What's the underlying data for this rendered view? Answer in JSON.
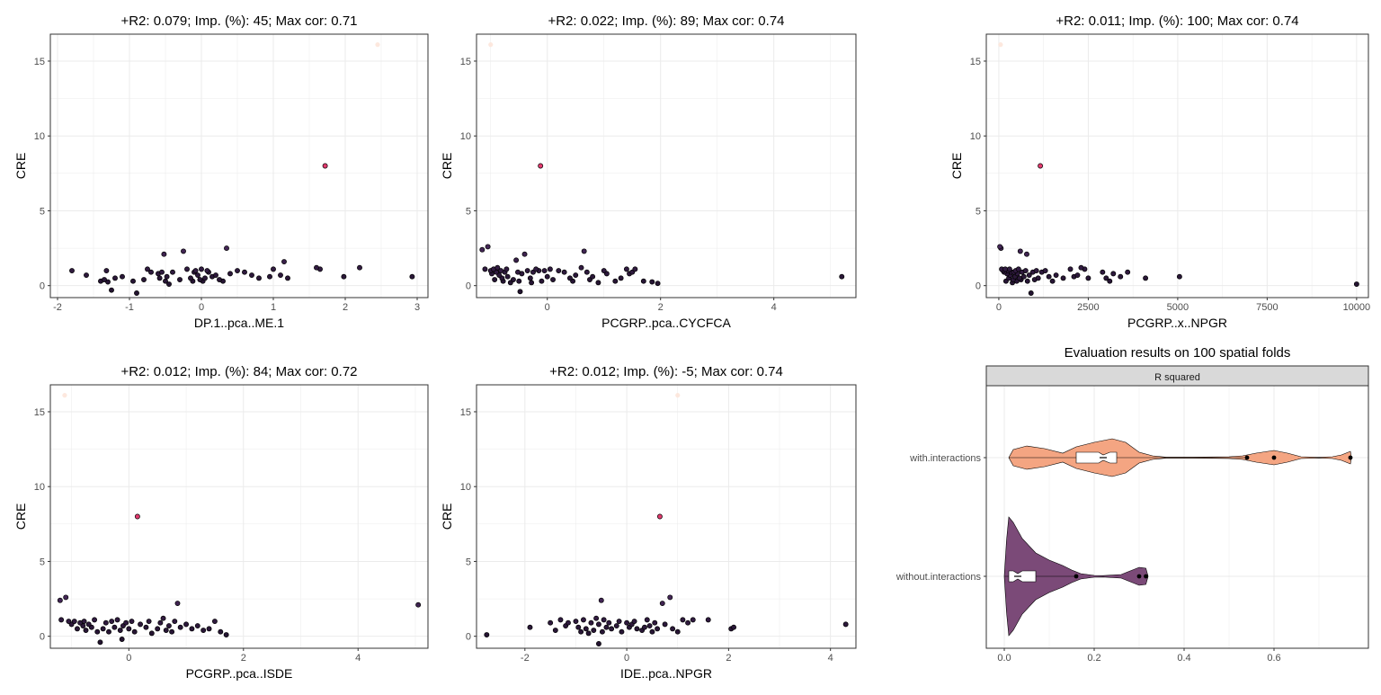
{
  "chart_data": [
    {
      "type": "scatter",
      "title": "+R2: 0.079; Imp. (%): 45; Max cor: 0.71",
      "xlabel": "DP.1..pca..ME.1",
      "ylabel": "CRE",
      "xlim": [
        -2.1,
        3.15
      ],
      "ylim": [
        -0.8,
        16.8
      ],
      "xticks": [
        -2,
        -1,
        0,
        1,
        2,
        3
      ],
      "yticks": [
        0,
        5,
        10,
        15
      ],
      "grid": true,
      "point_color_scale": "magma (dark purple = low CRE, pink = mid, pale peach = high)",
      "points": [
        [
          -1.8,
          1.0
        ],
        [
          -1.6,
          0.7
        ],
        [
          -1.4,
          0.3
        ],
        [
          -1.35,
          0.4
        ],
        [
          -1.32,
          1.0
        ],
        [
          -1.3,
          0.25
        ],
        [
          -1.25,
          -0.3
        ],
        [
          -1.2,
          0.5
        ],
        [
          -1.1,
          0.6
        ],
        [
          -0.95,
          0.3
        ],
        [
          -0.9,
          -0.5
        ],
        [
          -0.8,
          0.4
        ],
        [
          -0.75,
          1.1
        ],
        [
          -0.7,
          0.9
        ],
        [
          -0.6,
          0.8
        ],
        [
          -0.58,
          0.5
        ],
        [
          -0.55,
          0.9
        ],
        [
          -0.52,
          2.1
        ],
        [
          -0.5,
          0.3
        ],
        [
          -0.48,
          0.6
        ],
        [
          -0.45,
          0.1
        ],
        [
          -0.4,
          0.9
        ],
        [
          -0.3,
          0.4
        ],
        [
          -0.25,
          2.3
        ],
        [
          -0.2,
          1.1
        ],
        [
          -0.15,
          0.5
        ],
        [
          -0.12,
          0.3
        ],
        [
          -0.1,
          0.9
        ],
        [
          -0.08,
          1.0
        ],
        [
          -0.05,
          0.7
        ],
        [
          -0.02,
          0.4
        ],
        [
          0.0,
          1.1
        ],
        [
          0.02,
          0.3
        ],
        [
          0.05,
          0.5
        ],
        [
          0.08,
          1.0
        ],
        [
          0.1,
          0.9
        ],
        [
          0.15,
          0.6
        ],
        [
          0.2,
          0.7
        ],
        [
          0.25,
          0.4
        ],
        [
          0.3,
          0.3
        ],
        [
          0.35,
          2.5
        ],
        [
          0.4,
          0.8
        ],
        [
          0.5,
          1.0
        ],
        [
          0.6,
          0.9
        ],
        [
          0.7,
          0.7
        ],
        [
          0.8,
          0.5
        ],
        [
          0.95,
          0.6
        ],
        [
          1.0,
          1.1
        ],
        [
          1.1,
          0.7
        ],
        [
          1.15,
          1.6
        ],
        [
          1.2,
          0.5
        ],
        [
          1.6,
          1.2
        ],
        [
          1.65,
          1.1
        ],
        [
          1.72,
          8.0
        ],
        [
          1.98,
          0.6
        ],
        [
          2.2,
          1.2
        ],
        [
          2.45,
          16.1
        ],
        [
          2.93,
          0.6
        ]
      ]
    },
    {
      "type": "scatter",
      "title": "+R2: 0.022; Imp. (%): 89; Max cor: 0.74",
      "xlabel": "PCGRP..pca..CYCFCA",
      "ylabel": "CRE",
      "xlim": [
        -1.25,
        5.45
      ],
      "ylim": [
        -0.8,
        16.8
      ],
      "xticks": [
        0,
        2,
        4
      ],
      "yticks": [
        0,
        5,
        10,
        15
      ],
      "grid": true,
      "points": [
        [
          -1.15,
          2.4
        ],
        [
          -1.1,
          1.1
        ],
        [
          -1.05,
          2.6
        ],
        [
          -1.0,
          1.0
        ],
        [
          -0.98,
          0.8
        ],
        [
          -0.95,
          1.1
        ],
        [
          -0.93,
          0.4
        ],
        [
          -0.9,
          0.9
        ],
        [
          -0.88,
          1.2
        ],
        [
          -0.85,
          0.7
        ],
        [
          -0.82,
          1.0
        ],
        [
          -0.8,
          0.5
        ],
        [
          -0.78,
          0.3
        ],
        [
          -0.75,
          0.9
        ],
        [
          -0.72,
          1.1
        ],
        [
          -0.7,
          0.6
        ],
        [
          -0.65,
          0.2
        ],
        [
          -0.6,
          0.4
        ],
        [
          -0.55,
          1.7
        ],
        [
          -0.52,
          0.9
        ],
        [
          -0.5,
          0.3
        ],
        [
          -0.48,
          -0.4
        ],
        [
          -0.45,
          0.8
        ],
        [
          -0.4,
          2.1
        ],
        [
          -0.35,
          1.0
        ],
        [
          -0.3,
          0.5
        ],
        [
          -0.28,
          0.2
        ],
        [
          -0.25,
          0.9
        ],
        [
          -0.2,
          1.1
        ],
        [
          -0.15,
          1.0
        ],
        [
          -0.12,
          8.0
        ],
        [
          -0.1,
          0.3
        ],
        [
          -0.05,
          1.0
        ],
        [
          0.0,
          0.6
        ],
        [
          0.05,
          1.1
        ],
        [
          0.1,
          0.4
        ],
        [
          0.2,
          1.0
        ],
        [
          0.3,
          0.9
        ],
        [
          0.4,
          0.5
        ],
        [
          0.45,
          0.3
        ],
        [
          0.5,
          0.7
        ],
        [
          0.6,
          1.2
        ],
        [
          0.65,
          2.3
        ],
        [
          0.7,
          0.9
        ],
        [
          0.75,
          0.4
        ],
        [
          0.8,
          0.6
        ],
        [
          0.9,
          0.2
        ],
        [
          1.0,
          1.0
        ],
        [
          1.05,
          0.8
        ],
        [
          1.2,
          0.3
        ],
        [
          1.3,
          0.5
        ],
        [
          1.4,
          1.1
        ],
        [
          1.45,
          0.8
        ],
        [
          1.5,
          0.9
        ],
        [
          1.55,
          1.1
        ],
        [
          1.7,
          0.3
        ],
        [
          1.85,
          0.25
        ],
        [
          1.95,
          0.15
        ],
        [
          5.2,
          0.6
        ],
        [
          -1.0,
          16.1
        ]
      ]
    },
    {
      "type": "scatter",
      "title": "+R2: 0.011; Imp. (%): 100; Max cor: 0.74",
      "xlabel": "PCGRP..x..NPGR",
      "ylabel": "CRE",
      "xlim": [
        -350,
        10330
      ],
      "ylim": [
        -0.8,
        16.8
      ],
      "xticks": [
        0,
        2500,
        5000,
        7500,
        10000
      ],
      "xticklabels": [
        "0",
        "2500",
        "5000",
        "7500",
        "10000"
      ],
      "yticks": [
        0,
        5,
        10,
        15
      ],
      "grid": true,
      "points": [
        [
          30,
          2.6
        ],
        [
          60,
          2.5
        ],
        [
          80,
          1.1
        ],
        [
          120,
          1.0
        ],
        [
          150,
          0.9
        ],
        [
          180,
          1.1
        ],
        [
          200,
          0.3
        ],
        [
          230,
          0.8
        ],
        [
          260,
          1.0
        ],
        [
          280,
          0.5
        ],
        [
          300,
          1.1
        ],
        [
          320,
          0.7
        ],
        [
          350,
          0.9
        ],
        [
          380,
          0.2
        ],
        [
          400,
          0.4
        ],
        [
          420,
          0.9
        ],
        [
          450,
          0.6
        ],
        [
          470,
          1.0
        ],
        [
          500,
          0.3
        ],
        [
          520,
          0.8
        ],
        [
          550,
          1.1
        ],
        [
          580,
          0.5
        ],
        [
          600,
          2.3
        ],
        [
          620,
          0.4
        ],
        [
          650,
          0.9
        ],
        [
          700,
          0.6
        ],
        [
          750,
          1.0
        ],
        [
          780,
          2.1
        ],
        [
          800,
          0.3
        ],
        [
          850,
          0.7
        ],
        [
          900,
          -0.5
        ],
        [
          950,
          0.9
        ],
        [
          1000,
          0.4
        ],
        [
          1050,
          1.0
        ],
        [
          1100,
          0.5
        ],
        [
          1160,
          8.0
        ],
        [
          1200,
          0.9
        ],
        [
          1300,
          1.0
        ],
        [
          1400,
          0.6
        ],
        [
          1500,
          0.3
        ],
        [
          1600,
          0.7
        ],
        [
          1800,
          0.5
        ],
        [
          2000,
          1.1
        ],
        [
          2100,
          0.6
        ],
        [
          2200,
          0.7
        ],
        [
          2300,
          1.2
        ],
        [
          2400,
          1.1
        ],
        [
          2500,
          0.5
        ],
        [
          2900,
          0.9
        ],
        [
          3000,
          0.5
        ],
        [
          3100,
          0.3
        ],
        [
          3200,
          0.8
        ],
        [
          3400,
          0.6
        ],
        [
          3600,
          0.9
        ],
        [
          4100,
          0.5
        ],
        [
          5050,
          0.6
        ],
        [
          10000,
          0.1
        ],
        [
          50,
          16.1
        ]
      ]
    },
    {
      "type": "scatter",
      "title": "+R2: 0.012; Imp. (%): 84; Max cor: 0.72",
      "xlabel": "PCGRP..pca..ISDE",
      "ylabel": "CRE",
      "xlim": [
        -1.37,
        5.22
      ],
      "ylim": [
        -0.8,
        16.8
      ],
      "xticks": [
        0,
        2,
        4
      ],
      "yticks": [
        0,
        5,
        10,
        15
      ],
      "grid": true,
      "points": [
        [
          -1.2,
          2.4
        ],
        [
          -1.18,
          1.1
        ],
        [
          -1.1,
          2.6
        ],
        [
          -1.05,
          1.0
        ],
        [
          -1.0,
          0.8
        ],
        [
          -0.95,
          1.0
        ],
        [
          -0.9,
          0.5
        ],
        [
          -0.85,
          0.9
        ],
        [
          -0.8,
          0.7
        ],
        [
          -0.78,
          1.0
        ],
        [
          -0.75,
          0.4
        ],
        [
          -0.7,
          0.8
        ],
        [
          -0.65,
          0.6
        ],
        [
          -0.6,
          1.1
        ],
        [
          -0.55,
          0.3
        ],
        [
          -0.5,
          -0.4
        ],
        [
          -0.45,
          0.5
        ],
        [
          -0.4,
          0.9
        ],
        [
          -0.35,
          0.3
        ],
        [
          -0.3,
          1.0
        ],
        [
          -0.25,
          0.6
        ],
        [
          -0.2,
          1.1
        ],
        [
          -0.15,
          0.4
        ],
        [
          -0.12,
          -0.2
        ],
        [
          -0.1,
          0.7
        ],
        [
          -0.05,
          0.9
        ],
        [
          0.0,
          0.5
        ],
        [
          0.05,
          1.0
        ],
        [
          0.1,
          0.3
        ],
        [
          0.15,
          8.0
        ],
        [
          0.2,
          0.8
        ],
        [
          0.3,
          0.6
        ],
        [
          0.35,
          1.0
        ],
        [
          0.4,
          0.2
        ],
        [
          0.5,
          0.5
        ],
        [
          0.55,
          0.9
        ],
        [
          0.6,
          1.2
        ],
        [
          0.65,
          0.4
        ],
        [
          0.7,
          0.7
        ],
        [
          0.75,
          0.3
        ],
        [
          0.8,
          1.0
        ],
        [
          0.85,
          2.2
        ],
        [
          0.9,
          0.6
        ],
        [
          1.0,
          0.8
        ],
        [
          1.1,
          0.5
        ],
        [
          1.2,
          0.7
        ],
        [
          1.3,
          0.4
        ],
        [
          1.4,
          0.5
        ],
        [
          1.5,
          1.0
        ],
        [
          1.6,
          0.3
        ],
        [
          1.7,
          0.1
        ],
        [
          5.05,
          2.1
        ],
        [
          -1.12,
          16.1
        ]
      ]
    },
    {
      "type": "scatter",
      "title": "+R2: 0.012; Imp. (%): -5; Max cor: 0.74",
      "xlabel": "IDE..pca..NPGR",
      "ylabel": "CRE",
      "xlim": [
        -2.95,
        4.5
      ],
      "ylim": [
        -0.8,
        16.8
      ],
      "xticks": [
        -2,
        0,
        2,
        4
      ],
      "yticks": [
        0,
        5,
        10,
        15
      ],
      "grid": true,
      "points": [
        [
          -2.75,
          0.1
        ],
        [
          -1.9,
          0.6
        ],
        [
          -1.5,
          0.9
        ],
        [
          -1.4,
          0.4
        ],
        [
          -1.3,
          1.1
        ],
        [
          -1.2,
          0.7
        ],
        [
          -1.15,
          0.9
        ],
        [
          -1.0,
          1.0
        ],
        [
          -0.95,
          0.6
        ],
        [
          -0.9,
          0.3
        ],
        [
          -0.85,
          1.1
        ],
        [
          -0.8,
          0.5
        ],
        [
          -0.75,
          0.2
        ],
        [
          -0.7,
          0.9
        ],
        [
          -0.65,
          0.4
        ],
        [
          -0.6,
          1.2
        ],
        [
          -0.55,
          0.8
        ],
        [
          -0.5,
          2.4
        ],
        [
          -0.48,
          0.3
        ],
        [
          -0.45,
          1.1
        ],
        [
          -0.4,
          0.6
        ],
        [
          -0.35,
          0.9
        ],
        [
          -0.3,
          0.5
        ],
        [
          -0.2,
          0.7
        ],
        [
          -0.15,
          1.0
        ],
        [
          -0.1,
          0.3
        ],
        [
          0.0,
          0.9
        ],
        [
          0.05,
          0.6
        ],
        [
          0.1,
          0.8
        ],
        [
          0.15,
          1.0
        ],
        [
          0.2,
          0.5
        ],
        [
          0.3,
          0.4
        ],
        [
          0.35,
          0.6
        ],
        [
          0.4,
          1.1
        ],
        [
          0.45,
          0.7
        ],
        [
          0.5,
          0.3
        ],
        [
          0.55,
          0.9
        ],
        [
          0.6,
          0.5
        ],
        [
          0.65,
          8.0
        ],
        [
          0.7,
          2.2
        ],
        [
          0.75,
          0.8
        ],
        [
          0.85,
          2.6
        ],
        [
          0.9,
          0.5
        ],
        [
          1.0,
          0.3
        ],
        [
          1.1,
          1.1
        ],
        [
          1.2,
          0.9
        ],
        [
          1.3,
          1.1
        ],
        [
          1.6,
          1.1
        ],
        [
          2.05,
          0.5
        ],
        [
          2.1,
          0.6
        ],
        [
          4.3,
          0.8
        ],
        [
          -0.55,
          -0.5
        ],
        [
          1.0,
          16.1
        ]
      ]
    },
    {
      "type": "violin",
      "title": "Evaluation results on 100 spatial folds",
      "facet_label": "R squared",
      "xlim": [
        -0.04,
        0.81
      ],
      "xticks": [
        0.0,
        0.2,
        0.4,
        0.6
      ],
      "xticklabels": [
        "0.0",
        "0.2",
        "0.4",
        "0.6"
      ],
      "categories": [
        "with.interactions",
        "without.interactions"
      ],
      "series": [
        {
          "name": "with.interactions",
          "fill": "#f4a582",
          "range": [
            0.01,
            0.77
          ],
          "box": {
            "q1": 0.16,
            "median": 0.22,
            "q3": 0.25,
            "notch_low": 0.21,
            "notch_high": 0.235
          },
          "outliers": [
            0.54,
            0.6,
            0.77
          ]
        },
        {
          "name": "without.interactions",
          "fill": "#7b4a78",
          "range": [
            0.0,
            0.32
          ],
          "box": {
            "q1": 0.01,
            "median": 0.03,
            "q3": 0.07,
            "notch_low": 0.02,
            "notch_high": 0.04
          },
          "outliers": [
            0.16,
            0.3,
            0.315
          ]
        }
      ]
    }
  ],
  "colors": {
    "panel_border": "#333333",
    "grid": "#ebebeb",
    "strip_fill": "#d9d9d9",
    "point_low": "#231330",
    "point_mid": "#e23a6e",
    "point_high": "#fde6da"
  }
}
